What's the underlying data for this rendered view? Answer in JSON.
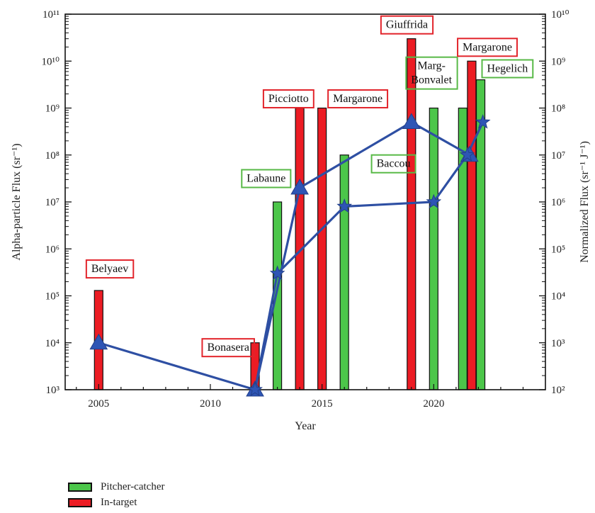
{
  "chart_data": {
    "type": "bar",
    "xlabel": "Year",
    "ylabel_left": "Alpha-particle Flux (sr⁻¹)",
    "ylabel_right": "Normalized Flux (sr⁻¹ J⁻¹)",
    "xlim": [
      2003.5,
      2025
    ],
    "xticks": [
      2005,
      2010,
      2015,
      2020
    ],
    "ylim_left": [
      1000,
      100000000000
    ],
    "ylim_right": [
      100,
      10000000000
    ],
    "yticks_left": [
      "10³",
      "10⁴",
      "10⁵",
      "10⁶",
      "10⁷",
      "10⁸",
      "10⁹",
      "10¹⁰",
      "10¹¹"
    ],
    "yticks_right": [
      "10²",
      "10³",
      "10⁴",
      "10⁵",
      "10⁶",
      "10⁷",
      "10⁸",
      "10⁹",
      "10¹⁰"
    ],
    "y_scale": "log",
    "colors": {
      "pitcher_catcher": "#4cc64a",
      "in_target": "#ec1c24",
      "line": "#2e4fa3",
      "marker": "#2e55b5"
    },
    "bars": [
      {
        "year": 2005,
        "value": 130000,
        "group": "in_target"
      },
      {
        "year": 2012,
        "value": 10000,
        "group": "in_target"
      },
      {
        "year": 2013,
        "value": 10000000,
        "group": "pitcher_catcher"
      },
      {
        "year": 2014,
        "value": 1000000000,
        "group": "in_target"
      },
      {
        "year": 2015,
        "value": 1000000000,
        "group": "in_target"
      },
      {
        "year": 2016,
        "value": 100000000,
        "group": "pitcher_catcher"
      },
      {
        "year": 2019,
        "value": 30000000000,
        "group": "in_target"
      },
      {
        "year": 2020,
        "value": 1000000000,
        "group": "pitcher_catcher"
      },
      {
        "year": 2021.3,
        "value": 1000000000,
        "group": "pitcher_catcher"
      },
      {
        "year": 2021.7,
        "value": 10000000000,
        "group": "in_target"
      },
      {
        "year": 2022.1,
        "value": 4000000000,
        "group": "pitcher_catcher"
      }
    ],
    "series_triangle": [
      {
        "year": 2005,
        "value": 1000
      },
      {
        "year": 2012,
        "value": 100
      },
      {
        "year": 2014,
        "value": 2000000
      },
      {
        "year": 2019,
        "value": 50000000
      },
      {
        "year": 2021.6,
        "value": 10000000
      }
    ],
    "series_star": [
      {
        "year": 2012,
        "value": 100
      },
      {
        "year": 2013,
        "value": 30000
      },
      {
        "year": 2016,
        "value": 800000
      },
      {
        "year": 2020,
        "value": 1000000
      },
      {
        "year": 2021.5,
        "value": 10000000
      },
      {
        "year": 2022.2,
        "value": 50000000
      }
    ],
    "annotations": [
      {
        "text": "Belyaev",
        "group": "in_target",
        "year": 2005.5,
        "flux": 380000
      },
      {
        "text": "Bonasera",
        "group": "in_target",
        "year": 2010.8,
        "flux": 8000
      },
      {
        "text": "Labaune",
        "group": "pitcher_catcher",
        "year": 2012.5,
        "flux": 32000000
      },
      {
        "text": "Picciotto",
        "group": "in_target",
        "year": 2013.5,
        "flux": 1600000000
      },
      {
        "text": "Margarone",
        "group": "in_target",
        "year": 2016.6,
        "flux": 1600000000
      },
      {
        "text": "Baccou",
        "group": "pitcher_catcher",
        "year": 2018.2,
        "flux": 66000000
      },
      {
        "text": "Giuffrida",
        "group": "in_target",
        "year": 2018.8,
        "flux": 60000000000
      },
      {
        "text": "Marg-",
        "group": "pitcher_catcher",
        "year": 2019.9,
        "flux": 8000000000
      },
      {
        "text": "Bonvalet",
        "group": "pitcher_catcher",
        "year": 2019.9,
        "flux": 4000000000
      },
      {
        "text": "Margarone",
        "group": "in_target",
        "year": 2022.4,
        "flux": 20000000000
      },
      {
        "text": "Hegelich",
        "group": "pitcher_catcher",
        "year": 2023.3,
        "flux": 7000000000
      }
    ],
    "legend": [
      {
        "label": "Pitcher-catcher",
        "group": "pitcher_catcher"
      },
      {
        "label": "In-target",
        "group": "in_target"
      }
    ]
  }
}
